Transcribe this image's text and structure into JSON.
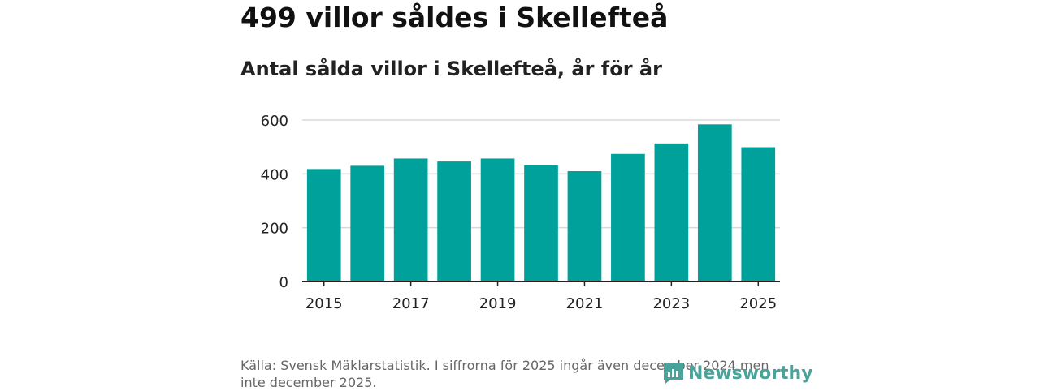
{
  "header": {
    "title": "499 villor såldes i Skellefteå",
    "subtitle": "Antal sålda villor i Skellefteå, år för år"
  },
  "footer": {
    "source": "Källa: Svensk Mäklarstatistik. I siffrorna för 2025 ingår även december 2024 men inte december 2025.",
    "brand": "Newsworthy"
  },
  "colors": {
    "bar": "#00a19a",
    "grid": "#d9d9d9",
    "axis": "#222222",
    "brand": "#4aa39a"
  },
  "chart_data": {
    "type": "bar",
    "categories": [
      "2015",
      "2016",
      "2017",
      "2018",
      "2019",
      "2020",
      "2021",
      "2022",
      "2023",
      "2024",
      "2025"
    ],
    "values": [
      418,
      430,
      457,
      446,
      457,
      432,
      410,
      474,
      513,
      584,
      499
    ],
    "tick_labels_x": [
      "2015",
      "2017",
      "2019",
      "2021",
      "2023",
      "2025"
    ],
    "yticks": [
      0,
      200,
      400,
      600
    ],
    "ylim": [
      0,
      600
    ],
    "grid": true,
    "legend": "none"
  }
}
